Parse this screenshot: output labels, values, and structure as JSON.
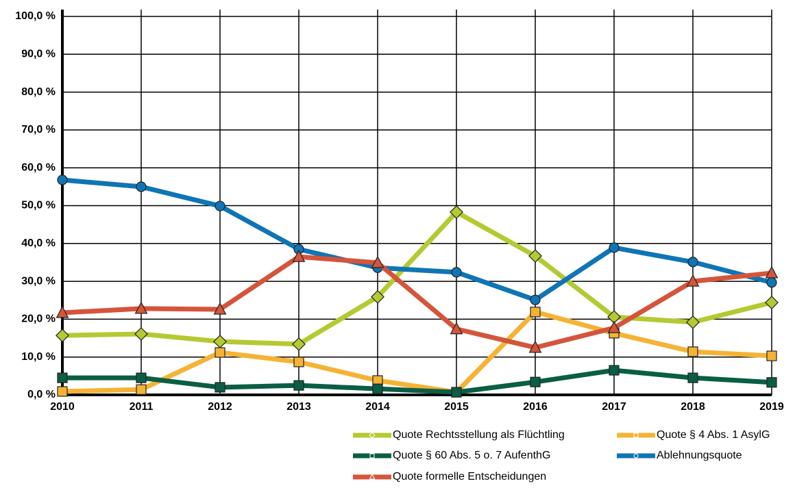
{
  "chart_data": {
    "type": "line",
    "categories": [
      "2010",
      "2011",
      "2012",
      "2013",
      "2014",
      "2015",
      "2016",
      "2017",
      "2018",
      "2019"
    ],
    "ylim": [
      0,
      100
    ],
    "yticks": [
      {
        "value": 0,
        "label": "0,0 %"
      },
      {
        "value": 10,
        "label": "10,0 %"
      },
      {
        "value": 20,
        "label": "20,0 %"
      },
      {
        "value": 30,
        "label": "30,0 %"
      },
      {
        "value": 40,
        "label": "40,0 %"
      },
      {
        "value": 50,
        "label": "50,0 %"
      },
      {
        "value": 60,
        "label": "60,0 %"
      },
      {
        "value": 70,
        "label": "70,0 %"
      },
      {
        "value": 80,
        "label": "80,0 %"
      },
      {
        "value": 90,
        "label": "90,0 %"
      },
      {
        "value": 100,
        "label": "100,0 %"
      }
    ],
    "grid": true,
    "series": [
      {
        "name": "Quote Rechtsstellung als Flüchtling",
        "color": "#b5c932",
        "marker": "diamond",
        "values": [
          15.7,
          16.1,
          14.1,
          13.4,
          25.9,
          48.3,
          36.7,
          20.6,
          19.2,
          24.4
        ]
      },
      {
        "name": "Quote § 4 Abs. 1 AsylG",
        "color": "#f5b335",
        "marker": "square",
        "values": [
          0.9,
          1.4,
          11.2,
          8.7,
          3.8,
          0.7,
          21.9,
          16.3,
          11.4,
          10.3
        ]
      },
      {
        "name": "Quote § 60 Abs. 5 o. 7 AufenthG",
        "color": "#0b5e45",
        "marker": "square",
        "values": [
          4.5,
          4.5,
          2.0,
          2.5,
          1.6,
          0.7,
          3.4,
          6.5,
          4.5,
          3.3
        ]
      },
      {
        "name": "Ablehnungsquote",
        "color": "#0f75b5",
        "marker": "circle",
        "values": [
          56.8,
          55.0,
          49.9,
          38.5,
          33.6,
          32.4,
          25.1,
          38.9,
          35.1,
          29.7
        ]
      },
      {
        "name": "Quote formelle Entscheidungen",
        "color": "#d4553b",
        "marker": "triangle",
        "values": [
          21.7,
          22.8,
          22.6,
          36.5,
          34.9,
          17.4,
          12.5,
          17.7,
          30.0,
          32.2
        ]
      }
    ]
  }
}
